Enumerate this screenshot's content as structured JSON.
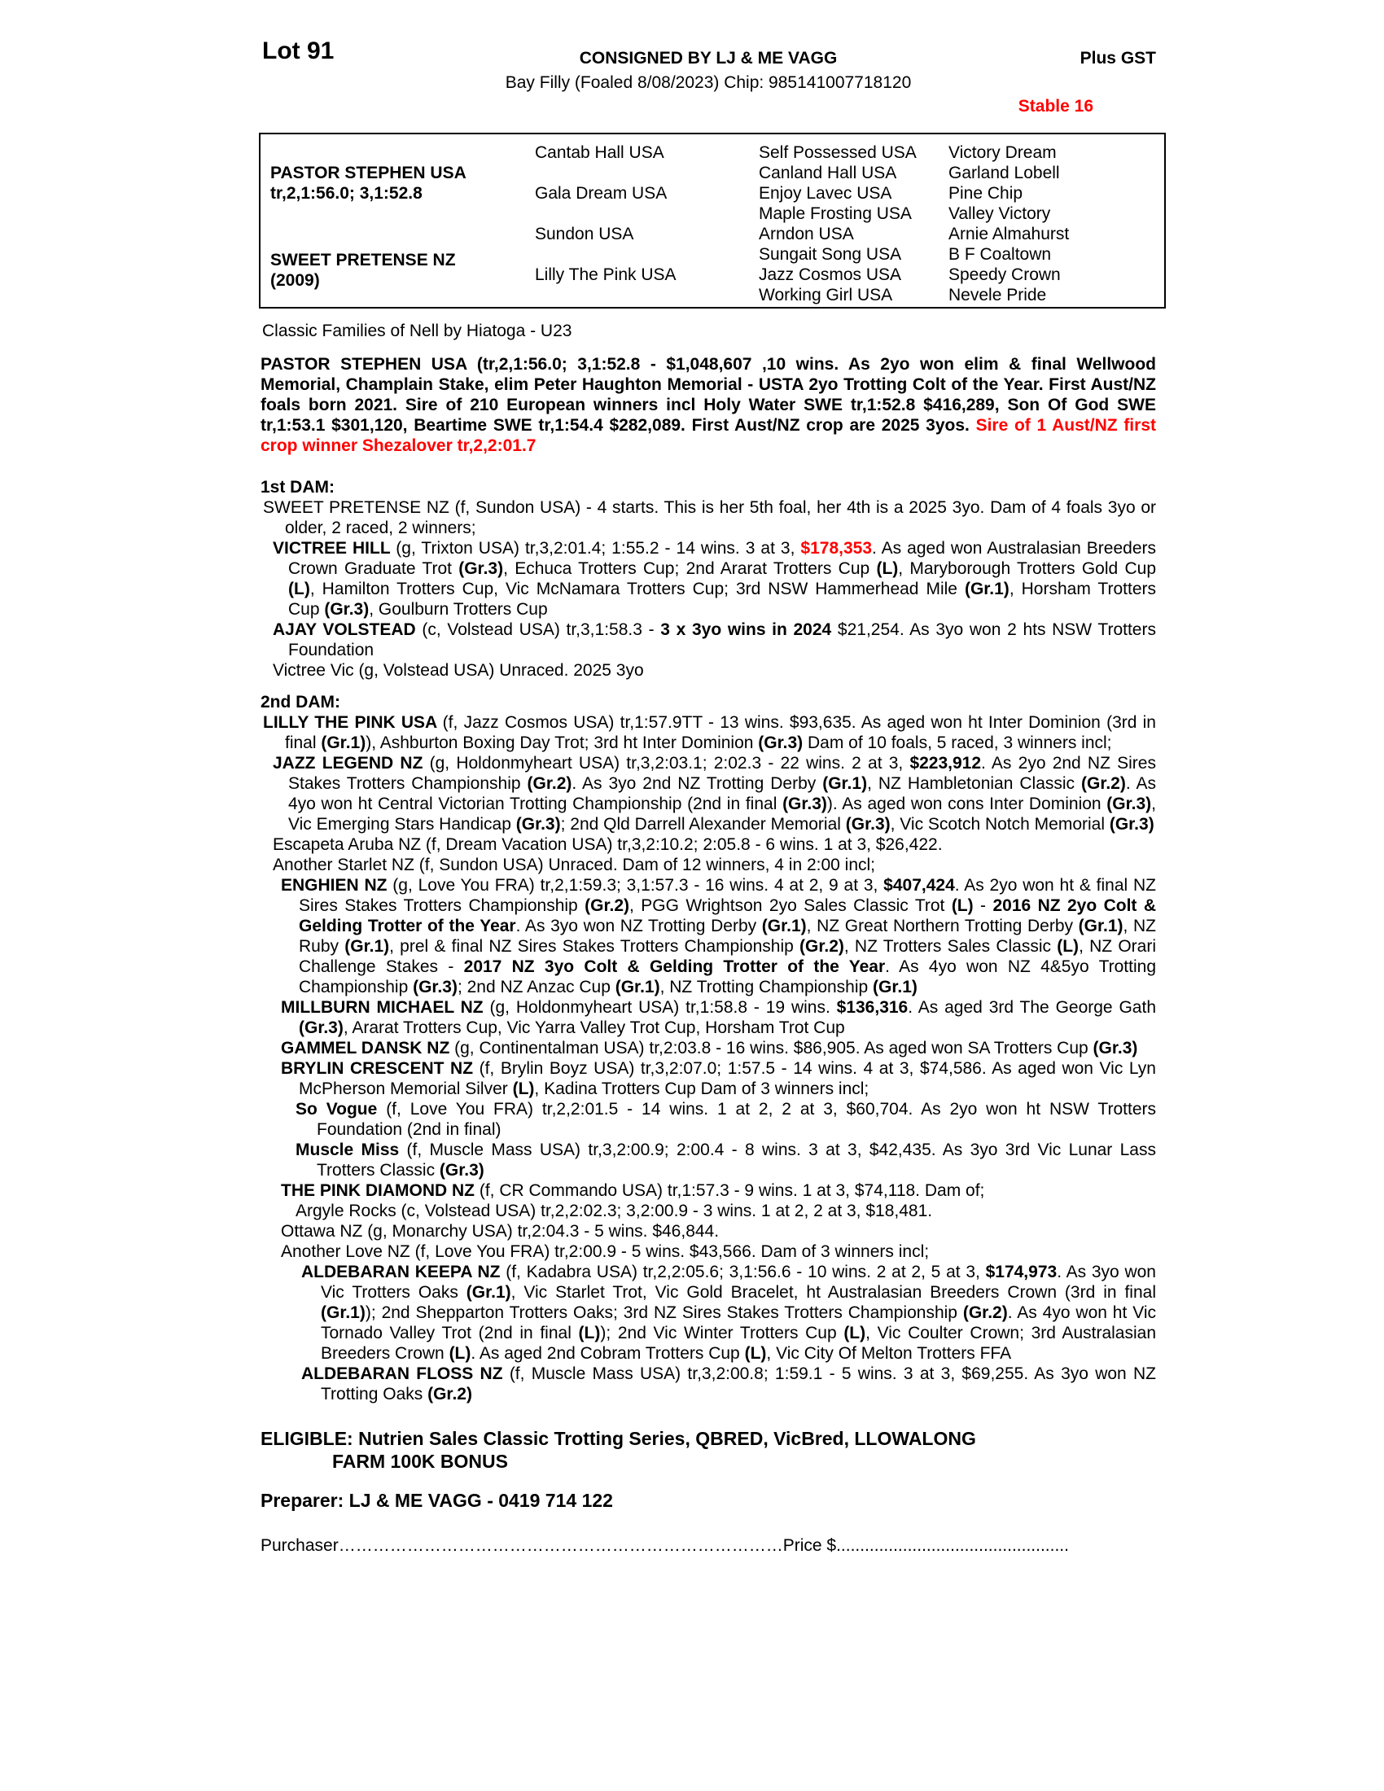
{
  "colors": {
    "accent_red": "#ff0000"
  },
  "header": {
    "lot": "Lot 91",
    "consigned": "CONSIGNED BY LJ & ME VAGG",
    "plus_gst": "Plus GST",
    "foal_info": "Bay Filly (Foaled 8/08/2023) Chip: 985141007718120",
    "stable": "Stable 16"
  },
  "pedigree": {
    "sire_name": "PASTOR STEPHEN USA",
    "sire_record": "tr,2,1:56.0; 3,1:52.8",
    "dam_name": "SWEET PRETENSE NZ",
    "dam_year": "(2009)",
    "col2": [
      "Cantab Hall USA",
      "Gala Dream USA",
      "Sundon USA",
      "Lilly The Pink USA"
    ],
    "col3": [
      "Self Possessed USA",
      "Canland Hall USA",
      "Enjoy Lavec USA",
      "Maple Frosting USA",
      "Arndon USA",
      "Sungait Song USA",
      "Jazz Cosmos USA",
      "Working Girl USA"
    ],
    "col4": [
      "Victory Dream",
      "Garland Lobell",
      "Pine Chip",
      "Valley Victory",
      "Arnie Almahurst",
      "B F Coaltown",
      "Speedy Crown",
      "Nevele Pride"
    ]
  },
  "text": {
    "family_line": "Classic Families of Nell by Hiatoga - U23",
    "sire_para": [
      [
        "",
        "PASTOR STEPHEN USA (tr,2,1:56.0; 3,1:52.8 - $1,048,607 ,10 wins. As 2yo won elim & final Wellwood Memorial, Champlain Stake, elim Peter Haughton Memorial - USTA 2yo Trotting Colt of the Year. First Aust/NZ foals born 2021. Sire of 210 European winners incl Holy Water SWE tr,1:52.8 $416,289, Son Of God SWE tr,1:53.1 $301,120, Beartime SWE tr,1:54.4 $282,089. First Aust/NZ crop are 2025 3yos. "
      ],
      [
        "r",
        "Sire of 1 Aust/NZ first crop winner Shezalover tr,2,2:01.7"
      ]
    ],
    "dam1_heading": "1st DAM:",
    "dam1_entries": [
      {
        "i": "dam",
        "seg": [
          [
            "",
            "SWEET PRETENSE NZ (f, Sundon USA) - 4 starts. This is her 5th foal, her 4th is a 2025 3yo. Dam of 4 foals 3yo or older, 2 raced, 2 winners;"
          ]
        ]
      },
      {
        "i": "f1",
        "seg": [
          [
            "b",
            "VICTREE HILL "
          ],
          [
            "",
            "(g, Trixton USA) tr,3,2:01.4; 1:55.2 - 14 wins. 3 at 3, "
          ],
          [
            "r",
            "$178,353"
          ],
          [
            "",
            ". As aged won Australasian Breeders Crown Graduate Trot "
          ],
          [
            "b",
            "(Gr.3)"
          ],
          [
            "",
            ", Echuca Trotters Cup; 2nd Ararat Trotters Cup "
          ],
          [
            "b",
            "(L)"
          ],
          [
            "",
            ", Maryborough Trotters Gold Cup "
          ],
          [
            "b",
            "(L)"
          ],
          [
            "",
            ", Hamilton Trotters Cup, Vic McNamara Trotters Cup; 3rd NSW Hammerhead Mile "
          ],
          [
            "b",
            "(Gr.1)"
          ],
          [
            "",
            ", Horsham Trotters Cup "
          ],
          [
            "b",
            "(Gr.3)"
          ],
          [
            "",
            ", Goulburn Trotters Cup"
          ]
        ]
      },
      {
        "i": "f1",
        "seg": [
          [
            "b",
            "AJAY VOLSTEAD "
          ],
          [
            "",
            "(c, Volstead USA) tr,3,1:58.3 - "
          ],
          [
            "b",
            "3 x 3yo wins in 2024"
          ],
          [
            "",
            " $21,254. As 3yo won 2 hts NSW Trotters Foundation"
          ]
        ]
      },
      {
        "i": "f1",
        "seg": [
          [
            "",
            "Victree Vic (g, Volstead USA) Unraced. 2025 3yo"
          ]
        ]
      }
    ],
    "dam2_heading": "2nd DAM:",
    "dam2_entries": [
      {
        "i": "dam",
        "seg": [
          [
            "b",
            "LILLY THE PINK USA "
          ],
          [
            "",
            "(f, Jazz Cosmos USA) tr,1:57.9TT - 13 wins. $93,635. As aged won ht Inter Dominion (3rd in final "
          ],
          [
            "b",
            "(Gr.1)"
          ],
          [
            "",
            "), Ashburton Boxing Day Trot; 3rd ht Inter Dominion "
          ],
          [
            "b",
            "(Gr.3)"
          ],
          [
            "",
            " Dam of 10 foals, 5 raced, 3 winners incl;"
          ]
        ]
      },
      {
        "i": "f1",
        "seg": [
          [
            "b",
            "JAZZ LEGEND NZ "
          ],
          [
            "",
            "(g, Holdonmyheart USA) tr,3,2:03.1; 2:02.3 - 22 wins. 2 at 3, "
          ],
          [
            "b",
            "$223,912"
          ],
          [
            "",
            ". As 2yo 2nd NZ Sires Stakes Trotters Championship "
          ],
          [
            "b",
            "(Gr.2)"
          ],
          [
            "",
            ". As 3yo 2nd NZ Trotting Derby "
          ],
          [
            "b",
            "(Gr.1)"
          ],
          [
            "",
            ", NZ Hambletonian Classic "
          ],
          [
            "b",
            "(Gr.2)"
          ],
          [
            "",
            ". As 4yo won ht Central Victorian Trotting Championship (2nd in final "
          ],
          [
            "b",
            "(Gr.3)"
          ],
          [
            "",
            "). As aged won cons Inter Dominion "
          ],
          [
            "b",
            "(Gr.3)"
          ],
          [
            "",
            ", Vic Emerging Stars Handicap "
          ],
          [
            "b",
            "(Gr.3)"
          ],
          [
            "",
            "; 2nd Qld Darrell Alexander Memorial "
          ],
          [
            "b",
            "(Gr.3)"
          ],
          [
            "",
            ", Vic Scotch Notch Memorial "
          ],
          [
            "b",
            "(Gr.3)"
          ]
        ]
      },
      {
        "i": "f1",
        "seg": [
          [
            "",
            "Escapeta Aruba NZ (f, Dream Vacation USA) tr,3,2:10.2; 2:05.8 - 6 wins. 1 at 3, $26,422."
          ]
        ]
      },
      {
        "i": "f1",
        "seg": [
          [
            "",
            "Another Starlet NZ (f, Sundon USA) Unraced. Dam of 12 winners, 4 in 2:00 incl;"
          ]
        ]
      },
      {
        "i": "f2",
        "seg": [
          [
            "b",
            "ENGHIEN NZ "
          ],
          [
            "",
            "(g, Love You FRA) tr,2,1:59.3; 3,1:57.3 - 16 wins. 4 at 2, 9 at 3, "
          ],
          [
            "b",
            "$407,424"
          ],
          [
            "",
            ". As 2yo won ht & final NZ Sires Stakes Trotters Championship "
          ],
          [
            "b",
            "(Gr.2)"
          ],
          [
            "",
            ", PGG Wrightson 2yo Sales Classic Trot "
          ],
          [
            "b",
            "(L)"
          ],
          [
            "",
            " - "
          ],
          [
            "b",
            "2016 NZ 2yo Colt & Gelding Trotter of the Year"
          ],
          [
            "",
            ". As 3yo won NZ Trotting Derby "
          ],
          [
            "b",
            "(Gr.1)"
          ],
          [
            "",
            ", NZ Great Northern Trotting Derby "
          ],
          [
            "b",
            "(Gr.1)"
          ],
          [
            "",
            ", NZ Ruby "
          ],
          [
            "b",
            "(Gr.1)"
          ],
          [
            "",
            ", prel & final NZ Sires Stakes Trotters Championship "
          ],
          [
            "b",
            "(Gr.2)"
          ],
          [
            "",
            ", NZ Trotters Sales Classic "
          ],
          [
            "b",
            "(L)"
          ],
          [
            "",
            ", NZ Orari Challenge Stakes - "
          ],
          [
            "b",
            "2017 NZ 3yo Colt & Gelding Trotter of the Year"
          ],
          [
            "",
            ". As 4yo won NZ 4&5yo Trotting Championship "
          ],
          [
            "b",
            "(Gr.3)"
          ],
          [
            "",
            "; 2nd NZ Anzac Cup "
          ],
          [
            "b",
            "(Gr.1)"
          ],
          [
            "",
            ", NZ Trotting Championship "
          ],
          [
            "b",
            "(Gr.1)"
          ]
        ]
      },
      {
        "i": "f2",
        "seg": [
          [
            "b",
            "MILLBURN MICHAEL NZ "
          ],
          [
            "",
            "(g, Holdonmyheart USA) tr,1:58.8 - 19 wins. "
          ],
          [
            "b",
            "$136,316"
          ],
          [
            "",
            ". As aged 3rd The George Gath "
          ],
          [
            "b",
            "(Gr.3)"
          ],
          [
            "",
            ", Ararat Trotters Cup, Vic Yarra Valley Trot Cup, Horsham Trot Cup"
          ]
        ]
      },
      {
        "i": "f2",
        "seg": [
          [
            "b",
            "GAMMEL DANSK NZ "
          ],
          [
            "",
            "(g, Continentalman USA) tr,2:03.8 - 16 wins. $86,905. As aged won SA Trotters Cup "
          ],
          [
            "b",
            "(Gr.3)"
          ]
        ]
      },
      {
        "i": "f2",
        "seg": [
          [
            "b",
            "BRYLIN CRESCENT NZ "
          ],
          [
            "",
            "(f, Brylin Boyz USA) tr,3,2:07.0; 1:57.5 - 14 wins. 4 at 3, $74,586. As aged won Vic Lyn McPherson Memorial Silver "
          ],
          [
            "b",
            "(L)"
          ],
          [
            "",
            ", Kadina Trotters Cup Dam of 3 winners incl;"
          ]
        ]
      },
      {
        "i": "f3",
        "seg": [
          [
            "b",
            "So Vogue "
          ],
          [
            "",
            "(f, Love You FRA) tr,2,2:01.5 - 14 wins. 1 at 2, 2 at 3, $60,704. As 2yo won ht NSW Trotters Foundation (2nd in final)"
          ]
        ]
      },
      {
        "i": "f3",
        "seg": [
          [
            "b",
            "Muscle Miss "
          ],
          [
            "",
            "(f, Muscle Mass USA) tr,3,2:00.9; 2:00.4 - 8 wins. 3 at 3, $42,435. As 3yo 3rd Vic Lunar Lass Trotters Classic "
          ],
          [
            "b",
            "(Gr.3)"
          ]
        ]
      },
      {
        "i": "f2",
        "seg": [
          [
            "b",
            "THE PINK DIAMOND NZ "
          ],
          [
            "",
            "(f, CR Commando USA) tr,1:57.3 - 9 wins. 1 at 3, $74,118. Dam of;"
          ]
        ]
      },
      {
        "i": "f3",
        "seg": [
          [
            "",
            "Argyle Rocks (c, Volstead USA) tr,2,2:02.3; 3,2:00.9 - 3 wins. 1 at 2, 2 at 3, $18,481."
          ]
        ]
      },
      {
        "i": "f2",
        "seg": [
          [
            "",
            "Ottawa NZ (g, Monarchy USA) tr,2:04.3 - 5 wins. $46,844."
          ]
        ]
      },
      {
        "i": "f2",
        "seg": [
          [
            "",
            "Another Love NZ (f, Love You FRA) tr,2:00.9 - 5 wins. $43,566. Dam of 3 winners incl;"
          ]
        ]
      },
      {
        "i": "f4",
        "seg": [
          [
            "b",
            "ALDEBARAN KEEPA NZ "
          ],
          [
            "",
            "(f, Kadabra USA) tr,2,2:05.6; 3,1:56.6 - 10 wins. 2 at 2, 5 at 3, "
          ],
          [
            "b",
            "$174,973"
          ],
          [
            "",
            ". As 3yo won Vic Trotters Oaks "
          ],
          [
            "b",
            "(Gr.1)"
          ],
          [
            "",
            ", Vic Starlet Trot, Vic Gold Bracelet, ht Australasian Breeders Crown (3rd in final "
          ],
          [
            "b",
            "(Gr.1)"
          ],
          [
            "",
            "); 2nd Shepparton Trotters Oaks; 3rd NZ Sires Stakes Trotters Championship "
          ],
          [
            "b",
            "(Gr.2)"
          ],
          [
            "",
            ". As 4yo won ht Vic Tornado Valley Trot (2nd in final "
          ],
          [
            "b",
            "(L)"
          ],
          [
            "",
            "); 2nd Vic Winter Trotters Cup "
          ],
          [
            "b",
            "(L)"
          ],
          [
            "",
            ", Vic Coulter Crown; 3rd Australasian Breeders Crown "
          ],
          [
            "b",
            "(L)"
          ],
          [
            "",
            ". As aged 2nd Cobram Trotters Cup "
          ],
          [
            "b",
            "(L)"
          ],
          [
            "",
            ", Vic City Of Melton Trotters FFA"
          ]
        ]
      },
      {
        "i": "f4",
        "seg": [
          [
            "b",
            "ALDEBARAN FLOSS NZ "
          ],
          [
            "",
            "(f, Muscle Mass USA) tr,3,2:00.8; 1:59.1 - 5 wins. 3 at 3, $69,255. As 3yo won NZ Trotting Oaks "
          ],
          [
            "b",
            "(Gr.2)"
          ]
        ]
      }
    ],
    "eligible_line1": "ELIGIBLE: Nutrien Sales Classic Trotting Series, QBRED, VicBred, LLOWALONG",
    "eligible_line2": "FARM 100K BONUS",
    "preparer": "Preparer: LJ & ME VAGG - 0419 714 122",
    "purchaser_label": "Purchaser",
    "purchaser_dots": "……………………………………………………………………",
    "price_label": "Price $",
    "price_dots": "................................................."
  }
}
